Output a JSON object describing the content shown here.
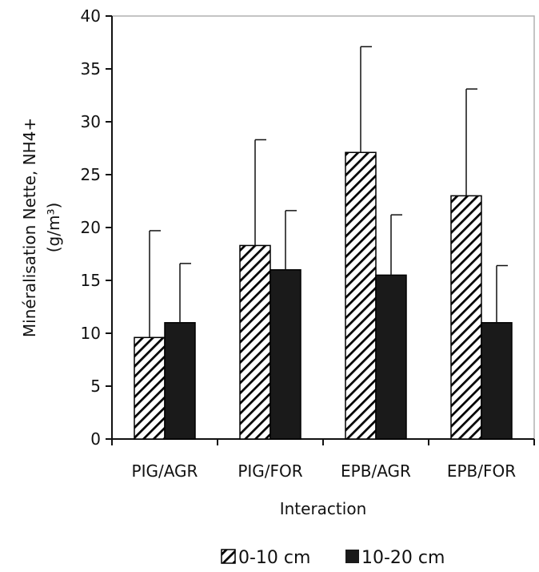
{
  "chart_data": {
    "type": "bar",
    "title": "",
    "xlabel": "Interaction",
    "ylabel": "Minéralisation Nette, NH4+",
    "ylabel_line2": "(g/m³)",
    "categories": [
      "PIG/AGR",
      "PIG/FOR",
      "EPB/AGR",
      "EPB/FOR"
    ],
    "ylim": [
      0,
      40
    ],
    "yticks": [
      0,
      5,
      10,
      15,
      20,
      25,
      30,
      35,
      40
    ],
    "grid": false,
    "legend_position": "bottom",
    "series": [
      {
        "name": "0-10 cm",
        "pattern": "diagonal-hatch",
        "color": "#000000",
        "values": [
          9.6,
          18.3,
          27.1,
          23.0
        ],
        "error_upper": [
          19.7,
          28.3,
          37.1,
          33.1
        ]
      },
      {
        "name": "10-20 cm",
        "pattern": "solid",
        "color": "#1a1a1a",
        "values": [
          11.0,
          16.0,
          15.5,
          11.0
        ],
        "error_upper": [
          16.6,
          21.6,
          21.2,
          16.4
        ]
      }
    ]
  }
}
